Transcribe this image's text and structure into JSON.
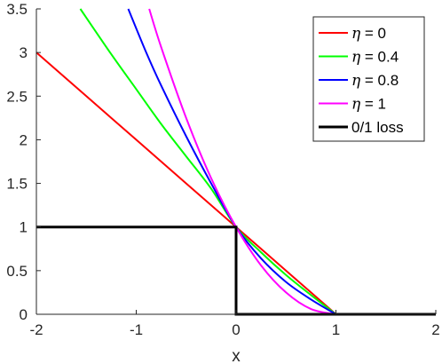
{
  "chart_data": {
    "type": "line",
    "title": "",
    "xlabel": "x",
    "ylabel": "",
    "xlim": [
      -2,
      2
    ],
    "ylim": [
      0,
      3.5
    ],
    "xticks": [
      -2,
      -1,
      0,
      1,
      2
    ],
    "xtick_labels": [
      "-2",
      "-1",
      "0",
      "1",
      "2"
    ],
    "yticks": [
      0,
      0.5,
      1,
      1.5,
      2,
      2.5,
      3,
      3.5
    ],
    "ytick_labels": [
      "0",
      "0.5",
      "1",
      "1.5",
      "2",
      "2.5",
      "3",
      "3.5"
    ],
    "grid": false,
    "legend_position": "top-right",
    "series": [
      {
        "name": "η = 0",
        "color": "#ff0000",
        "x": [
          -2,
          -1.5,
          -1,
          -0.5,
          0,
          0.25,
          0.5,
          0.75,
          1,
          2
        ],
        "y": [
          3,
          2.5,
          2,
          1.5,
          1,
          0.75,
          0.5,
          0.25,
          0,
          0
        ]
      },
      {
        "name": "η = 0.4",
        "color": "#00ff00",
        "x": [
          -1.56,
          -1.25,
          -1,
          -0.75,
          -0.5,
          -0.25,
          0,
          0.25,
          0.5,
          0.75,
          1,
          2
        ],
        "y": [
          3.5,
          2.98,
          2.58,
          2.18,
          1.81,
          1.44,
          1,
          0.71,
          0.45,
          0.22,
          0,
          0
        ]
      },
      {
        "name": "η = 0.8",
        "color": "#0000ff",
        "x": [
          -1.08,
          -0.9,
          -0.75,
          -0.5,
          -0.25,
          0,
          0.25,
          0.5,
          0.75,
          1,
          2
        ],
        "y": [
          3.5,
          3.0,
          2.62,
          2.04,
          1.5,
          1,
          0.64,
          0.37,
          0.17,
          0,
          0
        ]
      },
      {
        "name": "η = 1",
        "color": "#ff00ff",
        "x": [
          -0.87,
          -0.75,
          -0.5,
          -0.25,
          0,
          0.25,
          0.5,
          0.75,
          1,
          2
        ],
        "y": [
          3.5,
          3.06,
          2.25,
          1.56,
          1,
          0.56,
          0.25,
          0.06,
          0,
          0
        ]
      },
      {
        "name": "0/1 loss",
        "color": "#000000",
        "x": [
          -2,
          0,
          0,
          2
        ],
        "y": [
          1,
          1,
          0,
          0
        ]
      }
    ],
    "legend": [
      {
        "eta": "η",
        "rest": " = 0"
      },
      {
        "eta": "η",
        "rest": " = 0.4"
      },
      {
        "eta": "η",
        "rest": " = 0.8"
      },
      {
        "eta": "η",
        "rest": " = 1"
      },
      {
        "eta": "",
        "rest": "0/1 loss"
      }
    ]
  }
}
